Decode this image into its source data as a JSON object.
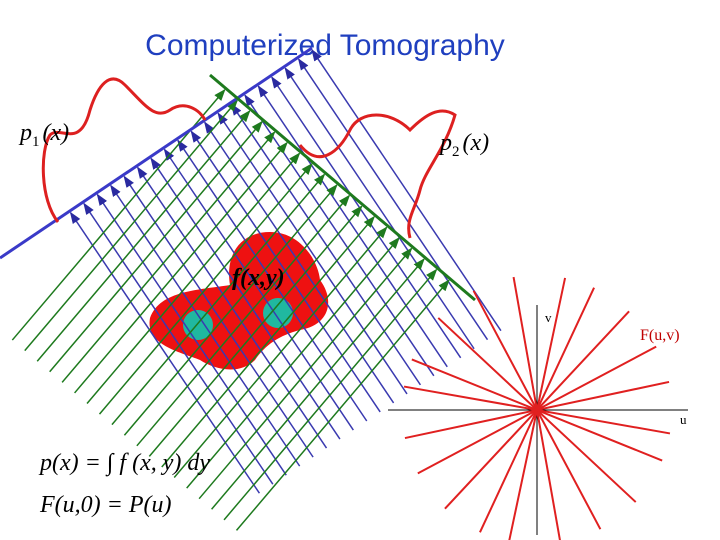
{
  "header": {
    "title": "Computerized Tomography"
  },
  "labels": {
    "p1": {
      "base": "p",
      "sub": "1",
      "arg": "(x)"
    },
    "p2": {
      "base": "p",
      "sub": "2",
      "arg": "(x)"
    },
    "f": "f(x,y)",
    "v": "v",
    "u": "u",
    "F": "F(u,v)"
  },
  "equations": [
    "p(x) = ∫ f (x, y) dy",
    "F(u,0) = P(u)"
  ]
}
